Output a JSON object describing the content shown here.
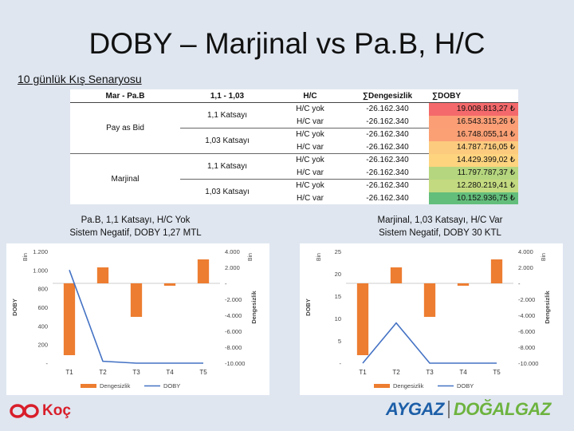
{
  "title": "DOBY – Marjinal vs Pa.B, H/C",
  "subtitle": "10 günlük Kış Senaryosu",
  "table": {
    "headers": [
      "Mar - Pa.B",
      "1,1 - 1,03",
      "H/C",
      "∑Dengesizlik",
      "∑DOBY"
    ],
    "group_labels": [
      "Pay as Bid",
      "Marjinal"
    ],
    "factor_labels": [
      "1,1 Katsayı",
      "1,03 Katsayı",
      "1,1 Katsayı",
      "1,03 Katsayı"
    ],
    "rows": [
      {
        "hc": "H/C yok",
        "deng": "-26.162.340",
        "doby": "19.008.813,27 ₺",
        "color": "#f4696b"
      },
      {
        "hc": "H/C var",
        "deng": "-26.162.340",
        "doby": "16.543.315,26 ₺",
        "color": "#fb9e76"
      },
      {
        "hc": "H/C yok",
        "deng": "-26.162.340",
        "doby": "16.748.055,14 ₺",
        "color": "#fba075"
      },
      {
        "hc": "H/C var",
        "deng": "-26.162.340",
        "doby": "14.787.716,05 ₺",
        "color": "#fdcb7e"
      },
      {
        "hc": "H/C yok",
        "deng": "-26.162.340",
        "doby": "14.429.399,02 ₺",
        "color": "#fed47f"
      },
      {
        "hc": "H/C var",
        "deng": "-26.162.340",
        "doby": "11.797.787,37 ₺",
        "color": "#b5d67e"
      },
      {
        "hc": "H/C yok",
        "deng": "-26.162.340",
        "doby": "12.280.219,41 ₺",
        "color": "#c4da80"
      },
      {
        "hc": "H/C var",
        "deng": "-26.162.340",
        "doby": "10.152.936,75 ₺",
        "color": "#63be7b"
      }
    ]
  },
  "caption_left": {
    "line1": "Pa.B, 1,1 Katsayı, H/C Yok",
    "line2": "Sistem Negatif, DOBY 1,27 MTL"
  },
  "caption_right": {
    "line1": "Marjinal, 1,03 Katsayı, H/C Var",
    "line2": "Sistem Negatif, DOBY 30 KTL"
  },
  "colors": {
    "bar": "#ed7d31",
    "line": "#4472c4"
  },
  "chart_data": [
    {
      "type": "bar",
      "categories": [
        "T1",
        "T2",
        "T3",
        "T4",
        "T5"
      ],
      "left_axis": {
        "title": "DOBY",
        "unit": "Bin",
        "ticks": [
          "1.200",
          "1.000",
          "800",
          "600",
          "400",
          "200",
          "-"
        ],
        "range": [
          0,
          1200
        ]
      },
      "right_axis": {
        "title": "Dengesizlik",
        "unit": "Bin",
        "ticks": [
          "4.000",
          "2.000",
          "-",
          "-2.000",
          "-4.000",
          "-6.000",
          "-8.000",
          "-10.000"
        ],
        "range": [
          -10000,
          4000
        ]
      },
      "series": [
        {
          "name": "Dengesizlik",
          "axis": "right",
          "kind": "bar",
          "values": [
            -9000,
            2000,
            -4200,
            -300,
            3000
          ]
        },
        {
          "name": "DOBY",
          "axis": "left",
          "kind": "line",
          "values": [
            1000,
            20,
            0,
            0,
            0
          ]
        }
      ]
    },
    {
      "type": "bar",
      "categories": [
        "T1",
        "T2",
        "T3",
        "T4",
        "T5"
      ],
      "left_axis": {
        "title": "DOBY",
        "unit": "Bin",
        "ticks": [
          "25",
          "20",
          "15",
          "10",
          "5",
          "-"
        ],
        "range": [
          0,
          25
        ]
      },
      "right_axis": {
        "title": "Dengesizlik",
        "unit": "Bin",
        "ticks": [
          "4.000",
          "2.000",
          "-",
          "-2.000",
          "-4.000",
          "-6.000",
          "-8.000",
          "-10.000"
        ],
        "range": [
          -10000,
          4000
        ]
      },
      "series": [
        {
          "name": "Dengesizlik",
          "axis": "right",
          "kind": "bar",
          "values": [
            -9000,
            2000,
            -4200,
            -300,
            3000
          ]
        },
        {
          "name": "DOBY",
          "axis": "left",
          "kind": "line",
          "values": [
            0,
            9,
            0,
            0,
            0
          ]
        }
      ]
    }
  ],
  "logo_left": "Koç",
  "logo_right": {
    "part1": "AYGAZ",
    "part2": "DOĞALGAZ"
  }
}
